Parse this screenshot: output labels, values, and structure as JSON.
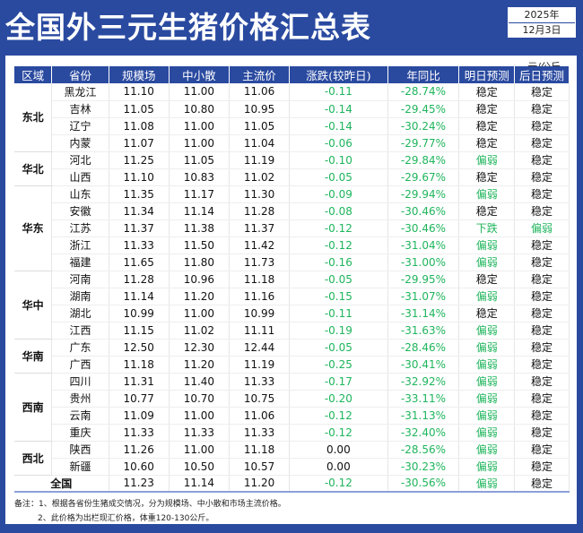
{
  "title": "全国外三元生猪价格汇总表",
  "date": {
    "year": "2025年",
    "day": "12月3日"
  },
  "unit": "元/公斤",
  "colors": {
    "background": "#2a4aa0",
    "green": "#1fb55c"
  },
  "headers": [
    "区域",
    "省份",
    "规模场",
    "中小散",
    "主流价",
    "涨跌(较昨日)",
    "年同比",
    "明日预测",
    "后日预测"
  ],
  "regions": [
    {
      "name": "东北",
      "rows": [
        [
          "黑龙江",
          "11.10",
          "11.00",
          "11.06",
          "-0.11",
          "-28.74%",
          "稳定",
          "稳定"
        ],
        [
          "吉林",
          "11.05",
          "10.80",
          "10.95",
          "-0.14",
          "-29.45%",
          "稳定",
          "稳定"
        ],
        [
          "辽宁",
          "11.08",
          "11.00",
          "11.05",
          "-0.14",
          "-30.24%",
          "稳定",
          "稳定"
        ],
        [
          "内蒙",
          "11.07",
          "11.00",
          "11.04",
          "-0.06",
          "-29.77%",
          "稳定",
          "稳定"
        ]
      ]
    },
    {
      "name": "华北",
      "rows": [
        [
          "河北",
          "11.25",
          "11.05",
          "11.19",
          "-0.10",
          "-29.84%",
          "偏弱",
          "稳定"
        ],
        [
          "山西",
          "11.10",
          "10.83",
          "11.02",
          "-0.05",
          "-29.67%",
          "稳定",
          "稳定"
        ]
      ]
    },
    {
      "name": "华东",
      "rows": [
        [
          "山东",
          "11.35",
          "11.17",
          "11.30",
          "-0.09",
          "-29.94%",
          "偏弱",
          "稳定"
        ],
        [
          "安徽",
          "11.34",
          "11.14",
          "11.28",
          "-0.08",
          "-30.46%",
          "稳定",
          "稳定"
        ],
        [
          "江苏",
          "11.37",
          "11.38",
          "11.37",
          "-0.12",
          "-30.46%",
          "下跌",
          "偏弱"
        ],
        [
          "浙江",
          "11.33",
          "11.50",
          "11.42",
          "-0.12",
          "-31.04%",
          "偏弱",
          "稳定"
        ],
        [
          "福建",
          "11.65",
          "11.80",
          "11.73",
          "-0.16",
          "-31.00%",
          "偏弱",
          "稳定"
        ]
      ]
    },
    {
      "name": "华中",
      "rows": [
        [
          "河南",
          "11.28",
          "10.96",
          "11.18",
          "-0.05",
          "-29.95%",
          "稳定",
          "稳定"
        ],
        [
          "湖南",
          "11.14",
          "11.20",
          "11.16",
          "-0.15",
          "-31.07%",
          "偏弱",
          "稳定"
        ],
        [
          "湖北",
          "10.99",
          "11.00",
          "10.99",
          "-0.11",
          "-31.14%",
          "稳定",
          "稳定"
        ],
        [
          "江西",
          "11.15",
          "11.02",
          "11.11",
          "-0.19",
          "-31.63%",
          "偏弱",
          "稳定"
        ]
      ]
    },
    {
      "name": "华南",
      "rows": [
        [
          "广东",
          "12.50",
          "12.30",
          "12.44",
          "-0.05",
          "-28.46%",
          "偏弱",
          "稳定"
        ],
        [
          "广西",
          "11.18",
          "11.20",
          "11.19",
          "-0.25",
          "-30.41%",
          "偏弱",
          "稳定"
        ]
      ]
    },
    {
      "name": "西南",
      "rows": [
        [
          "四川",
          "11.31",
          "11.40",
          "11.33",
          "-0.17",
          "-32.92%",
          "偏弱",
          "稳定"
        ],
        [
          "贵州",
          "10.77",
          "10.70",
          "10.75",
          "-0.20",
          "-33.11%",
          "偏弱",
          "稳定"
        ],
        [
          "云南",
          "11.09",
          "11.00",
          "11.06",
          "-0.12",
          "-31.13%",
          "偏弱",
          "稳定"
        ],
        [
          "重庆",
          "11.33",
          "11.33",
          "11.33",
          "-0.12",
          "-32.40%",
          "偏弱",
          "稳定"
        ]
      ]
    },
    {
      "name": "西北",
      "rows": [
        [
          "陕西",
          "11.26",
          "11.00",
          "11.18",
          "0.00",
          "-28.56%",
          "偏弱",
          "稳定"
        ],
        [
          "新疆",
          "10.60",
          "10.50",
          "10.57",
          "0.00",
          "-30.23%",
          "偏弱",
          "稳定"
        ]
      ]
    }
  ],
  "national": [
    "全国",
    "11.23",
    "11.14",
    "11.20",
    "-0.12",
    "-30.56%",
    "偏弱",
    "稳定"
  ],
  "notes": [
    "备注：1、根据各省份生猪成交情况，分为规模场、中小散和市场主流价格。",
    "2、此价格为出栏现汇价格，体重120-130公斤。"
  ]
}
